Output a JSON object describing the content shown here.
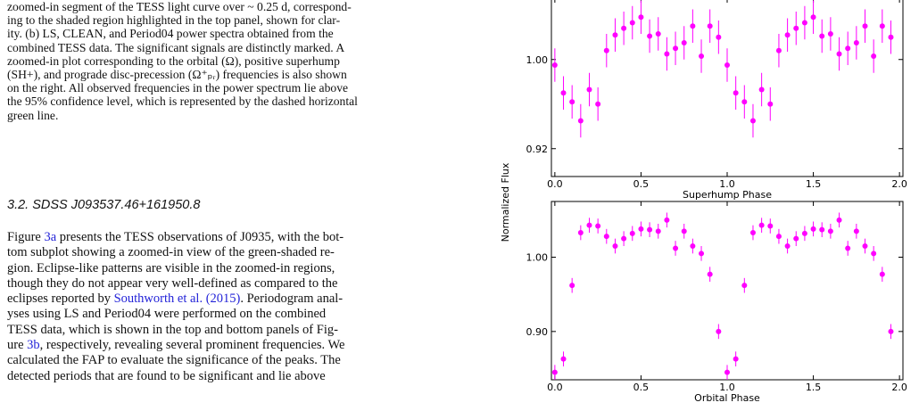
{
  "caption_lines": [
    "zoomed-in segment of the TESS light curve over ~ 0.25 d, correspond-",
    "ing to the shaded region highlighted in the top panel, shown for clar-",
    "ity. (b) LS, CLEAN, and Period04 power spectra obtained from the",
    "combined TESS data. The significant signals are distinctly marked. A",
    "zoomed-in plot corresponding to the orbital (Ω), positive superhump",
    "(SH+), and prograde disc-precession (Ω⁺ₚᵣ) frequencies is also shown",
    "on the right. All observed frequencies in the power spectrum lie above",
    "the 95% confidence level, which is represented by the dashed horizontal",
    "green line."
  ],
  "section_heading": "3.2. SDSS J093537.46+161950.8",
  "body": {
    "l1_a": "Figure ",
    "l1_link": "3a",
    "l1_b": " presents the TESS observations of J0935, with the bot-",
    "l2": "tom subplot showing a zoomed-in view of the green-shaded re-",
    "l3": "gion. Eclipse-like patterns are visible in the zoomed-in regions,",
    "l4": "though they do not appear very well-defined as compared to the",
    "l5_a": "eclipses reported by ",
    "l5_link": "Southworth et al. (2015)",
    "l5_b": ". Periodogram anal-",
    "l6": "yses using LS and Period04 were performed on the combined",
    "l7": "TESS data, which is shown in the top and bottom panels of Fig-",
    "l8_a": "ure ",
    "l8_link": "3b",
    "l8_b": ", respectively, revealing several prominent frequencies. We",
    "l9": "calculated the FAP to evaluate the significance of the peaks. The",
    "l10": "detected periods that are found to be significant and lie above"
  },
  "link_color": "#2323d8",
  "chart_data": [
    {
      "type": "scatter",
      "title": "",
      "xlabel": "Superhump Phase",
      "ylabel": "Normalized Flux",
      "xlim": [
        -0.02,
        2.02
      ],
      "ylim": [
        0.895,
        1.055
      ],
      "xticks": [
        "0.0",
        "0.5",
        "1.0",
        "1.5",
        "2.0"
      ],
      "xtick_values": [
        0.0,
        0.5,
        1.0,
        1.5,
        2.0
      ],
      "yticks": [
        "0.92",
        "1.00"
      ],
      "ytick_values": [
        0.92,
        1.0
      ],
      "marker_color": "#ff00ff",
      "x": [
        0.0,
        0.05,
        0.1,
        0.15,
        0.2,
        0.25,
        0.3,
        0.35,
        0.4,
        0.45,
        0.5,
        0.55,
        0.6,
        0.65,
        0.7,
        0.75,
        0.8,
        0.85,
        0.9,
        0.95,
        1.0,
        1.05,
        1.1,
        1.15,
        1.2,
        1.25,
        1.3,
        1.35,
        1.4,
        1.45,
        1.5,
        1.55,
        1.6,
        1.65,
        1.7,
        1.75,
        1.8,
        1.85,
        1.9,
        1.95
      ],
      "y": [
        0.995,
        0.97,
        0.962,
        0.945,
        0.973,
        0.96,
        1.008,
        1.022,
        1.028,
        1.033,
        1.038,
        1.021,
        1.023,
        1.005,
        1.01,
        1.015,
        1.03,
        1.003,
        1.03,
        1.02,
        0.995,
        0.97,
        0.962,
        0.945,
        0.973,
        0.96,
        1.008,
        1.022,
        1.028,
        1.033,
        1.038,
        1.021,
        1.023,
        1.005,
        1.01,
        1.015,
        1.03,
        1.003,
        1.03,
        1.02
      ],
      "yerr": 0.015
    },
    {
      "type": "scatter",
      "title": "",
      "xlabel": "Orbital Phase",
      "ylabel": "Normalized Flux",
      "xlim": [
        -0.02,
        2.02
      ],
      "ylim": [
        0.835,
        1.075
      ],
      "xticks": [
        "0.0",
        "0.5",
        "1.0",
        "1.5",
        "2.0"
      ],
      "xtick_values": [
        0.0,
        0.5,
        1.0,
        1.5,
        2.0
      ],
      "yticks": [
        "0.90",
        "1.00"
      ],
      "ytick_values": [
        0.9,
        1.0
      ],
      "marker_color": "#ff00ff",
      "x": [
        0.0,
        0.05,
        0.1,
        0.15,
        0.2,
        0.25,
        0.3,
        0.35,
        0.4,
        0.45,
        0.5,
        0.55,
        0.6,
        0.65,
        0.7,
        0.75,
        0.8,
        0.85,
        0.9,
        0.95,
        1.0,
        1.05,
        1.1,
        1.15,
        1.2,
        1.25,
        1.3,
        1.35,
        1.4,
        1.45,
        1.5,
        1.55,
        1.6,
        1.65,
        1.7,
        1.75,
        1.8,
        1.85,
        1.9,
        1.95
      ],
      "y": [
        0.845,
        0.863,
        0.962,
        1.033,
        1.043,
        1.042,
        1.028,
        1.015,
        1.025,
        1.032,
        1.038,
        1.037,
        1.035,
        1.05,
        1.012,
        1.035,
        1.015,
        1.005,
        0.977,
        0.9,
        0.845,
        0.863,
        0.962,
        1.033,
        1.043,
        1.042,
        1.028,
        1.015,
        1.025,
        1.032,
        1.038,
        1.037,
        1.035,
        1.05,
        1.012,
        1.035,
        1.015,
        1.005,
        0.977,
        0.9
      ],
      "yerr": 0.01
    }
  ]
}
